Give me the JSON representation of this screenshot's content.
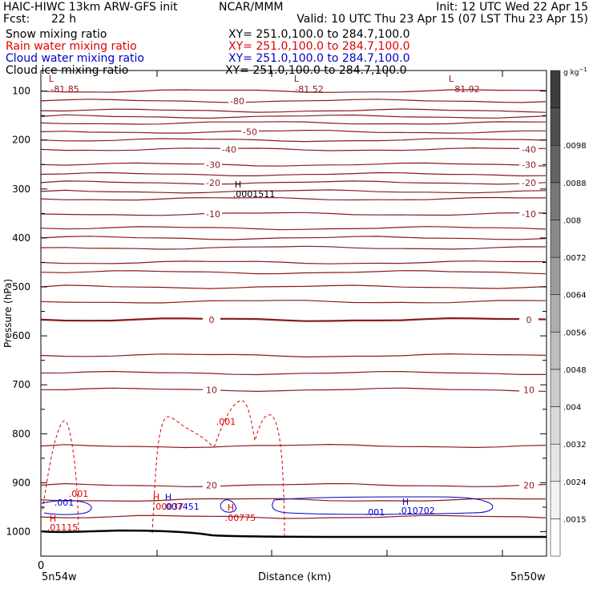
{
  "header": {
    "model": "HAIC-HIWC 13km ARW-GFS init",
    "org": "NCAR/MMM",
    "init": "Init: 12 UTC Wed 22 Apr 15",
    "fcst_label": "Fcst:",
    "fcst_value": "22 h",
    "valid": "Valid: 10 UTC Thu 23 Apr 15 (07 LST Thu 23 Apr 15)"
  },
  "fields": [
    {
      "name": "Snow mixing ratio",
      "xy": "XY= 251.0,100.0 to 284.7,100.0",
      "color": "#000000"
    },
    {
      "name": "Rain water mixing ratio",
      "xy": "XY= 251.0,100.0 to 284.7,100.0",
      "color": "#e00000"
    },
    {
      "name": "Cloud water mixing ratio",
      "xy": "XY= 251.0,100.0 to 284.7,100.0",
      "color": "#0000cc"
    },
    {
      "name": "Cloud ice mixing ratio",
      "xy": "XY= 251.0,100.0 to 284.7,100.0",
      "color": "#000000"
    }
  ],
  "chart_data": {
    "type": "contour",
    "ylabel": "Pressure (hPa)",
    "xlabel": "Distance (km)",
    "y_ticks": [
      100,
      200,
      300,
      400,
      500,
      600,
      700,
      800,
      900,
      1000
    ],
    "ylim": [
      1050,
      58
    ],
    "x_tick_zero": "0",
    "x_left_label": "5n54w",
    "x_right_label": "5n50w",
    "temperature_contours": {
      "color": "#8b1a1a",
      "labeled": [
        {
          "value": "-80",
          "p": 120
        },
        {
          "value": "-50",
          "p": 183
        },
        {
          "value": "-40",
          "p": 219
        },
        {
          "value": "-30",
          "p": 250
        },
        {
          "value": "-20",
          "p": 287
        },
        {
          "value": "-10",
          "p": 351
        },
        {
          "value": "0",
          "p": 567
        },
        {
          "value": "10",
          "p": 710
        },
        {
          "value": "20",
          "p": 905
        }
      ],
      "extra_levels_p": [
        100,
        140,
        152,
        165,
        200,
        270,
        305,
        320,
        380,
        400,
        420,
        450,
        470,
        500,
        530,
        640,
        676,
        825,
        935,
        970
      ]
    },
    "minima": [
      {
        "label": "L",
        "value": "-81.85"
      },
      {
        "label": "L",
        "value": "-81.52"
      },
      {
        "label": "L",
        "value": "-81.92"
      }
    ],
    "ice_max": {
      "label": "H",
      "value": ".0001511"
    },
    "rain_contour_label": ".001",
    "rain_maxima": [
      {
        "label": "H",
        "value": ".01115"
      },
      {
        "label": "H",
        "value": ".00037"
      },
      {
        "label": "H",
        "value": ".00775"
      }
    ],
    "cloud_contour_label": ".001",
    "cloud_maxima": [
      {
        "label": "H",
        "value": ".007451"
      },
      {
        "label": "H",
        "value": ".010702"
      }
    ],
    "colorbar": {
      "unit": "g kg",
      "unit_exp": "−1",
      "ticks": [
        ".0015",
        ".0024",
        ".0032",
        ".004",
        ".0048",
        ".0056",
        ".0064",
        ".0072",
        ".008",
        ".0088",
        ".0098"
      ],
      "colors": [
        "#ffffff",
        "#f2f2f2",
        "#e6e6e6",
        "#d9d9d9",
        "#cccccc",
        "#bdbdbd",
        "#adadad",
        "#9c9c9c",
        "#8a8a8a",
        "#777777",
        "#636363",
        "#4f4f4f",
        "#3c3c3c"
      ]
    }
  }
}
